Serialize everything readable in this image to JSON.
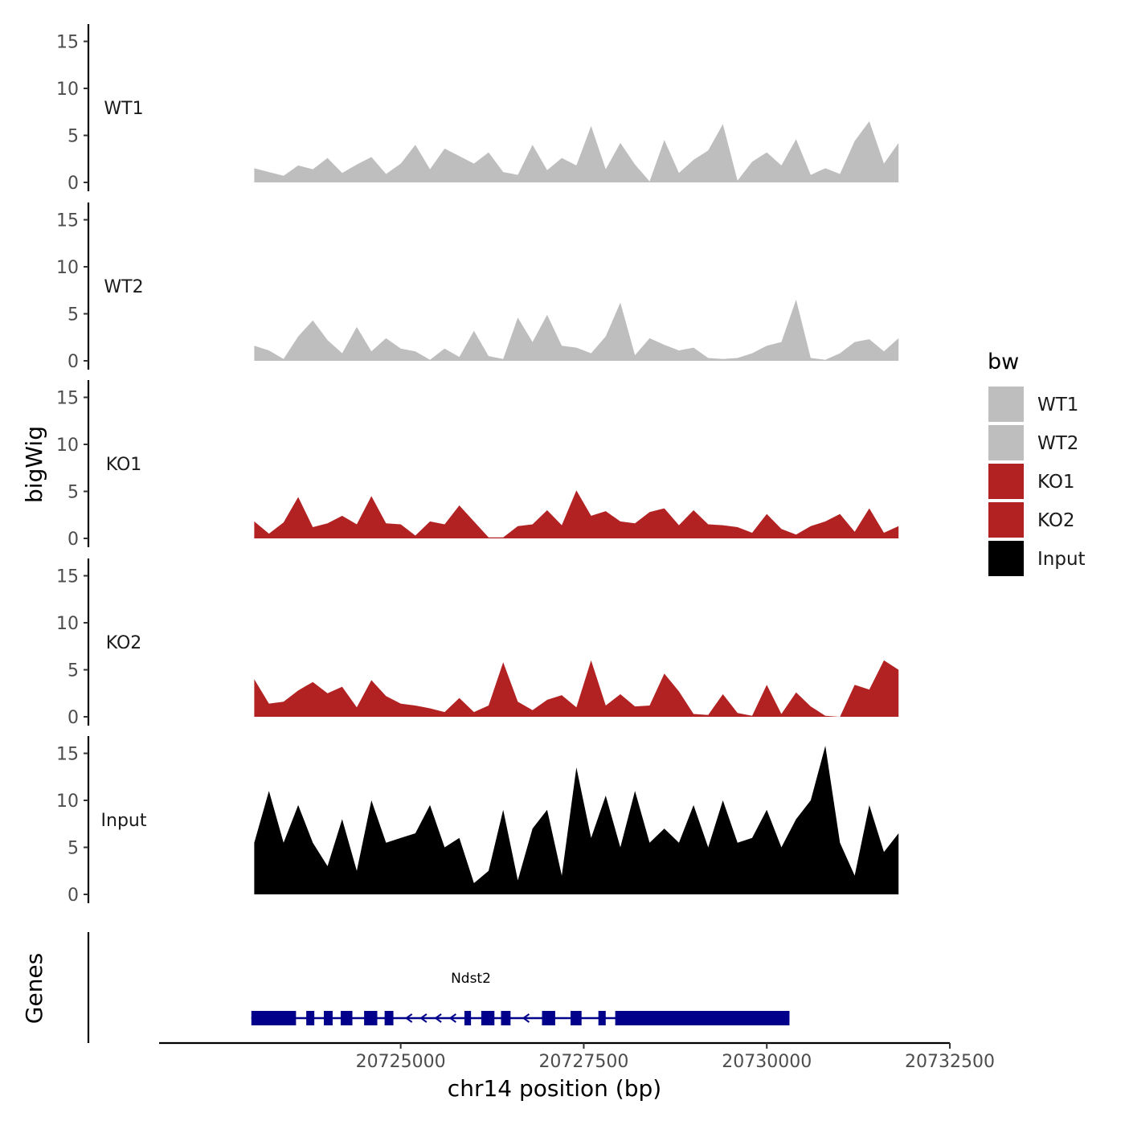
{
  "chart_data": {
    "type": "area",
    "xlabel": "chr14 position (bp)",
    "ylabel": "bigWig",
    "genes_label": "Genes",
    "xlim": [
      20721700,
      20732500
    ],
    "x_ticks": [
      20725000,
      20727500,
      20730000,
      20732500
    ],
    "x_tick_labels": [
      "20725000",
      "20727500",
      "20730000",
      "20732500"
    ],
    "ylim": [
      0,
      16
    ],
    "y_ticks": [
      0,
      5,
      10,
      15
    ],
    "y_tick_labels": [
      "0",
      "5",
      "10",
      "15"
    ],
    "legend": {
      "title": "bw",
      "position": "right",
      "entries": [
        {
          "label": "WT1",
          "color": "#BEBEBE"
        },
        {
          "label": "WT2",
          "color": "#BEBEBE"
        },
        {
          "label": "KO1",
          "color": "#B22222"
        },
        {
          "label": "KO2",
          "color": "#B22222"
        },
        {
          "label": "Input",
          "color": "#000000"
        }
      ]
    },
    "tracks": [
      {
        "name": "WT1",
        "color": "#BEBEBE",
        "x": [
          20723000,
          20723200,
          20723400,
          20723600,
          20723800,
          20724000,
          20724200,
          20724400,
          20724600,
          20724800,
          20725000,
          20725200,
          20725400,
          20725600,
          20725800,
          20726000,
          20726200,
          20726400,
          20726600,
          20726800,
          20727000,
          20727200,
          20727400,
          20727600,
          20727800,
          20728000,
          20728200,
          20728400,
          20728600,
          20728800,
          20729000,
          20729200,
          20729400,
          20729600,
          20729800,
          20730000,
          20730200,
          20730400,
          20730600,
          20730800,
          20731000,
          20731200,
          20731400,
          20731600,
          20731800
        ],
        "values": [
          1.5,
          1.1,
          0.7,
          1.8,
          1.4,
          2.6,
          1.0,
          1.9,
          2.7,
          0.9,
          2.0,
          4.0,
          1.4,
          3.6,
          2.8,
          2.0,
          3.2,
          1.1,
          0.8,
          4.0,
          1.3,
          2.6,
          1.8,
          6.0,
          1.4,
          4.2,
          1.9,
          0.1,
          4.5,
          1.0,
          2.4,
          3.4,
          6.2,
          0.2,
          2.2,
          3.2,
          1.8,
          4.6,
          0.8,
          1.5,
          0.9,
          4.4,
          6.5,
          2.0,
          4.2
        ]
      },
      {
        "name": "WT2",
        "color": "#BEBEBE",
        "x": [
          20723000,
          20723200,
          20723400,
          20723600,
          20723800,
          20724000,
          20724200,
          20724400,
          20724600,
          20724800,
          20725000,
          20725200,
          20725400,
          20725600,
          20725800,
          20726000,
          20726200,
          20726400,
          20726600,
          20726800,
          20727000,
          20727200,
          20727400,
          20727600,
          20727800,
          20728000,
          20728200,
          20728400,
          20728600,
          20728800,
          20729000,
          20729200,
          20729400,
          20729600,
          20729800,
          20730000,
          20730200,
          20730400,
          20730600,
          20730800,
          20731000,
          20731200,
          20731400,
          20731600,
          20731800
        ],
        "values": [
          1.6,
          1.1,
          0.2,
          2.6,
          4.3,
          2.2,
          0.8,
          3.6,
          1.0,
          2.4,
          1.3,
          1.0,
          0.1,
          1.3,
          0.4,
          3.2,
          0.5,
          0.2,
          4.6,
          2.0,
          4.9,
          1.6,
          1.4,
          0.8,
          2.6,
          6.2,
          0.6,
          2.4,
          1.7,
          1.1,
          1.4,
          0.3,
          0.2,
          0.3,
          0.8,
          1.6,
          2.0,
          6.5,
          0.3,
          0.1,
          0.8,
          2.0,
          2.3,
          1.0,
          2.4
        ]
      },
      {
        "name": "KO1",
        "color": "#B22222",
        "x": [
          20723000,
          20723200,
          20723400,
          20723600,
          20723800,
          20724000,
          20724200,
          20724400,
          20724600,
          20724800,
          20725000,
          20725200,
          20725400,
          20725600,
          20725800,
          20726000,
          20726200,
          20726400,
          20726600,
          20726800,
          20727000,
          20727200,
          20727400,
          20727600,
          20727800,
          20728000,
          20728200,
          20728400,
          20728600,
          20728800,
          20729000,
          20729200,
          20729400,
          20729600,
          20729800,
          20730000,
          20730200,
          20730400,
          20730600,
          20730800,
          20731000,
          20731200,
          20731400,
          20731600,
          20731800
        ],
        "values": [
          1.8,
          0.5,
          1.7,
          4.4,
          1.2,
          1.6,
          2.4,
          1.5,
          4.5,
          1.6,
          1.5,
          0.3,
          1.8,
          1.5,
          3.5,
          1.8,
          0.1,
          0.1,
          1.3,
          1.5,
          3.0,
          1.4,
          5.1,
          2.4,
          2.9,
          1.8,
          1.6,
          2.8,
          3.2,
          1.4,
          3.0,
          1.5,
          1.4,
          1.2,
          0.6,
          2.6,
          1.0,
          0.4,
          1.3,
          1.8,
          2.6,
          0.7,
          3.2,
          0.6,
          1.3
        ]
      },
      {
        "name": "KO2",
        "color": "#B22222",
        "x": [
          20723000,
          20723200,
          20723400,
          20723600,
          20723800,
          20724000,
          20724200,
          20724400,
          20724600,
          20724800,
          20725000,
          20725200,
          20725400,
          20725600,
          20725800,
          20726000,
          20726200,
          20726400,
          20726600,
          20726800,
          20727000,
          20727200,
          20727400,
          20727600,
          20727800,
          20728000,
          20728200,
          20728400,
          20728600,
          20728800,
          20729000,
          20729200,
          20729400,
          20729600,
          20729800,
          20730000,
          20730200,
          20730400,
          20730600,
          20730800,
          20731000,
          20731200,
          20731400,
          20731600,
          20731800
        ],
        "values": [
          4.0,
          1.4,
          1.6,
          2.8,
          3.7,
          2.5,
          3.2,
          1.0,
          3.9,
          2.2,
          1.4,
          1.2,
          0.9,
          0.5,
          2.0,
          0.5,
          1.2,
          5.8,
          1.6,
          0.7,
          1.8,
          2.3,
          1.0,
          6.0,
          1.2,
          2.4,
          1.1,
          1.2,
          4.6,
          2.7,
          0.3,
          0.2,
          2.4,
          0.4,
          0.1,
          3.4,
          0.3,
          2.6,
          1.1,
          0.1,
          0.0,
          3.4,
          2.9,
          6.0,
          5.0
        ]
      },
      {
        "name": "Input",
        "color": "#000000",
        "x": [
          20723000,
          20723200,
          20723400,
          20723600,
          20723800,
          20724000,
          20724200,
          20724400,
          20724600,
          20724800,
          20725000,
          20725200,
          20725400,
          20725600,
          20725800,
          20726000,
          20726200,
          20726400,
          20726600,
          20726800,
          20727000,
          20727200,
          20727400,
          20727600,
          20727800,
          20728000,
          20728200,
          20728400,
          20728600,
          20728800,
          20729000,
          20729200,
          20729400,
          20729600,
          20729800,
          20730000,
          20730200,
          20730400,
          20730600,
          20730800,
          20731000,
          20731200,
          20731400,
          20731600,
          20731800
        ],
        "values": [
          5.5,
          11.0,
          5.5,
          9.5,
          5.5,
          3.0,
          8.0,
          2.5,
          10.0,
          5.5,
          6.0,
          6.5,
          9.5,
          5.0,
          6.0,
          1.2,
          2.5,
          9.0,
          1.5,
          7.0,
          9.0,
          2.0,
          13.5,
          6.0,
          10.5,
          5.0,
          11.0,
          5.5,
          7.0,
          5.5,
          9.5,
          5.0,
          10.0,
          5.5,
          6.0,
          9.0,
          5.0,
          8.0,
          10.0,
          15.8,
          5.5,
          2.0,
          9.5,
          4.5,
          6.5
        ]
      }
    ],
    "gene": {
      "name": "Ndst2",
      "strand": "-",
      "start": 20722960,
      "end": 20730310,
      "exons": [
        [
          20722960,
          20723570
        ],
        [
          20723710,
          20723820
        ],
        [
          20723950,
          20724070
        ],
        [
          20724180,
          20724340
        ],
        [
          20724500,
          20724680
        ],
        [
          20724780,
          20724900
        ],
        [
          20725870,
          20725960
        ],
        [
          20726100,
          20726280
        ],
        [
          20726370,
          20726500
        ],
        [
          20726930,
          20727110
        ],
        [
          20727320,
          20727470
        ],
        [
          20727700,
          20727800
        ],
        [
          20727930,
          20730310
        ]
      ]
    }
  }
}
